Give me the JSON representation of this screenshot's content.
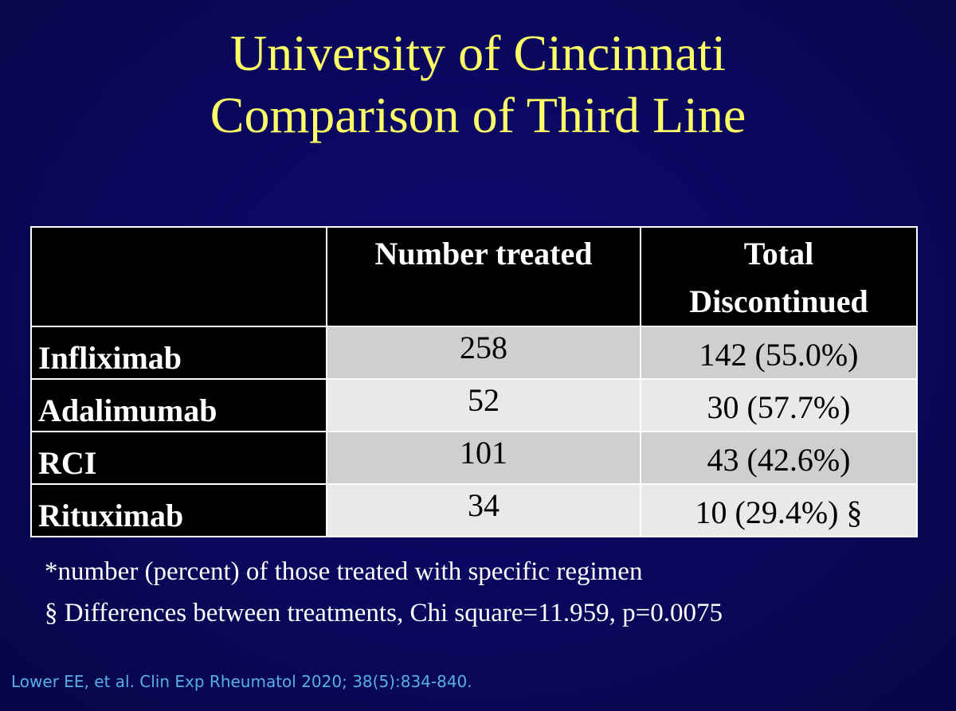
{
  "title": {
    "line1": "University of Cincinnati",
    "line2": "Comparison of Third Line"
  },
  "table": {
    "headers": {
      "col1": "",
      "col2": "Number treated",
      "col3_line1": "Total",
      "col3_line2": "Discontinued"
    },
    "rows": [
      {
        "drug": "Infliximab",
        "number_treated": "258",
        "total_discontinued": "142 (55.0%)"
      },
      {
        "drug": "Adalimumab",
        "number_treated": "52",
        "total_discontinued": "30 (57.7%)"
      },
      {
        "drug": "RCI",
        "number_treated": "101",
        "total_discontinued": "43 (42.6%)"
      },
      {
        "drug": "Rituximab",
        "number_treated": "34",
        "total_discontinued": "10 (29.4%) §"
      }
    ]
  },
  "footnotes": [
    "*number (percent) of those treated with specific regimen",
    "§ Differences between treatments, Chi square=11.959, p=0.0075"
  ],
  "citation": "Lower EE, et al. Clin Exp Rheumatol 2020; 38(5):834-840.",
  "colors": {
    "background": "#0a085c",
    "title": "#ffff66",
    "citation": "#5aaee8"
  }
}
